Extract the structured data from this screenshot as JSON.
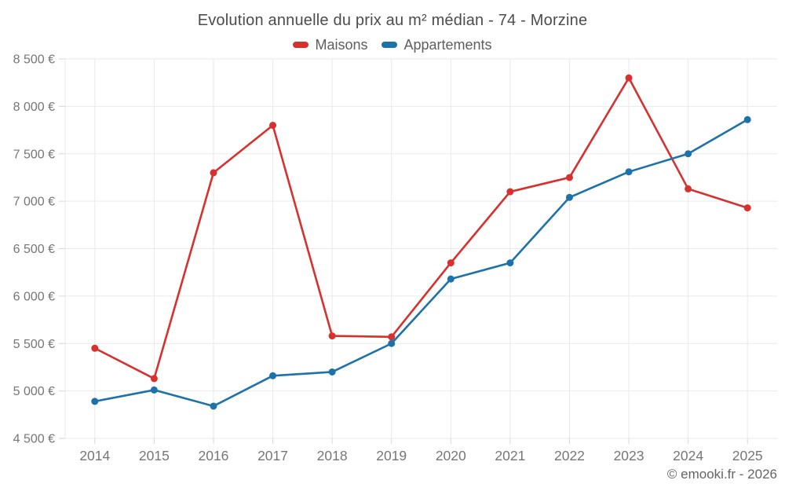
{
  "header": {
    "title": "Evolution annuelle du prix au m² médian - 74 - Morzine"
  },
  "legend": {
    "items": [
      {
        "label": "Maisons",
        "color": "#d6312e"
      },
      {
        "label": "Appartements",
        "color": "#1c72a9"
      }
    ]
  },
  "footer": {
    "copyright": "© emooki.fr - 2026"
  },
  "chart_data": {
    "type": "line",
    "title": "Evolution annuelle du prix au m² médian - 74 - Morzine",
    "xlabel": "",
    "ylabel": "",
    "categories": [
      "2014",
      "2015",
      "2016",
      "2017",
      "2018",
      "2019",
      "2020",
      "2021",
      "2022",
      "2023",
      "2024",
      "2025"
    ],
    "series": [
      {
        "name": "Maisons",
        "color": "#d6312e",
        "values": [
          5450,
          5130,
          7300,
          7800,
          5580,
          5570,
          6350,
          7100,
          7250,
          8300,
          7130,
          6930
        ]
      },
      {
        "name": "Appartements",
        "color": "#1c72a9",
        "values": [
          4890,
          5010,
          4840,
          5160,
          5200,
          5500,
          6180,
          6350,
          7040,
          7310,
          7500,
          7860
        ]
      }
    ],
    "ylim": [
      4500,
      8500
    ],
    "ytick_step": 500,
    "ytick_labels": [
      "4 500 €",
      "5 000 €",
      "5 500 €",
      "6 000 €",
      "6 500 €",
      "7 000 €",
      "7 500 €",
      "8 000 €",
      "8 500 €"
    ],
    "grid": true,
    "legend_position": "top",
    "grid_color": "#e9e9e9",
    "tick_color": "#d6d6d6",
    "axis_label_color": "#767676"
  }
}
